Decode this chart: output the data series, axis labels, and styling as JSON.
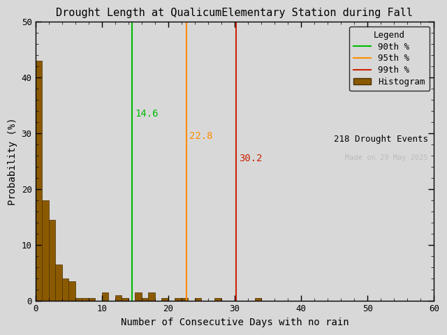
{
  "title": "Drought Length at QualicumElementary Station during Fall",
  "xlabel": "Number of Consecutive Days with no rain",
  "ylabel": "Probability (%)",
  "xlim": [
    0,
    60
  ],
  "ylim": [
    0,
    50
  ],
  "xticks": [
    0,
    10,
    20,
    30,
    40,
    50,
    60
  ],
  "yticks": [
    0,
    10,
    20,
    30,
    40,
    50
  ],
  "bar_color": "#8B5A00",
  "bar_edge_color": "#4A2F00",
  "percentile_90": 14.6,
  "percentile_95": 22.8,
  "percentile_99": 30.2,
  "p90_color": "#00BB00",
  "p95_color": "#FF8C00",
  "p99_color": "#CC2200",
  "p90_label_color": "#00BB00",
  "p95_label_color": "#FF8C00",
  "p99_label_color": "#CC2200",
  "n_events": 218,
  "watermark": "Made on 29 May 2025",
  "watermark_color": "#BBBBBB",
  "bin_heights": [
    43.0,
    18.0,
    14.5,
    6.5,
    4.0,
    3.5,
    0.5,
    0.5,
    0.5,
    0.0,
    1.5,
    0.0,
    1.0,
    0.5,
    0.0,
    1.5,
    0.5,
    1.5,
    0.0,
    0.5,
    0.0,
    0.5,
    0.5,
    0.0,
    0.5,
    0.0,
    0.0,
    0.5,
    0.0,
    0.0,
    0.0,
    0.0,
    0.0,
    0.5,
    0.0,
    0.0,
    0.0,
    0.0,
    0.0,
    0.0,
    0.0,
    0.0,
    0.0,
    0.0,
    0.0,
    0.0,
    0.0,
    0.0,
    0.0,
    0.0,
    0.0,
    0.0,
    0.0,
    0.0,
    0.0,
    0.0,
    0.0,
    0.0,
    0.0,
    0.0
  ],
  "background_color": "#D8D8D8",
  "plot_bg_color": "#D8D8D8",
  "title_fontsize": 11,
  "label_fontsize": 10,
  "legend_fontsize": 9,
  "tick_fontsize": 9
}
